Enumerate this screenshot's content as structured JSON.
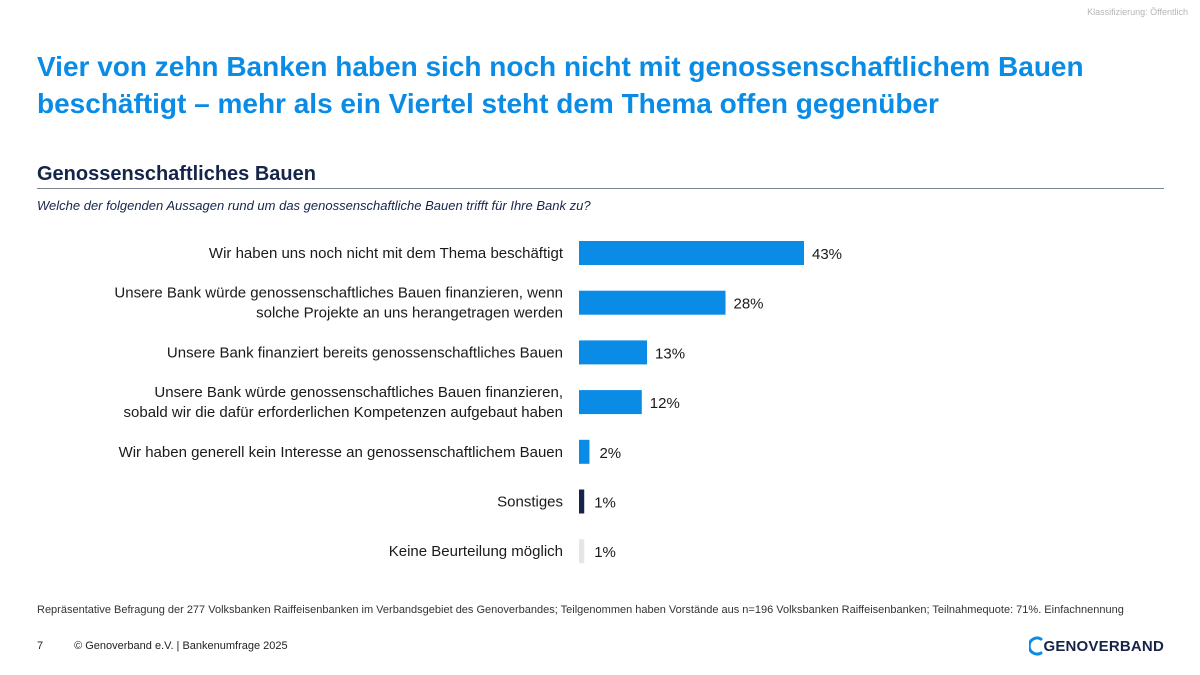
{
  "classification": "Klassifizierung: Öffentlich",
  "title": "Vier von zehn Banken haben sich noch nicht mit genossenschaftlichem Bauen beschäftigt – mehr als ein Viertel steht dem Thema offen gegenüber",
  "section_title": "Genossenschaftliches Bauen",
  "question": "Welche der folgenden Aussagen rund um das genossenschaftliche Bauen trifft für Ihre Bank zu?",
  "chart_data": {
    "type": "bar",
    "orientation": "horizontal",
    "categories": [
      [
        "Wir haben uns noch nicht mit dem Thema beschäftigt"
      ],
      [
        "Unsere Bank würde genossenschaftliches Bauen finanzieren, wenn",
        "solche Projekte an uns herangetragen werden"
      ],
      [
        "Unsere Bank finanziert bereits genossenschaftliches Bauen"
      ],
      [
        "Unsere Bank würde genossenschaftliches Bauen finanzieren,",
        "sobald wir die dafür erforderlichen Kompetenzen aufgebaut haben"
      ],
      [
        "Wir haben generell kein Interesse an genossenschaftlichem Bauen"
      ],
      [
        "Sonstiges"
      ],
      [
        "Keine Beurteilung möglich"
      ]
    ],
    "values": [
      43,
      28,
      13,
      12,
      2,
      1,
      1
    ],
    "value_labels": [
      "43%",
      "28%",
      "13%",
      "12%",
      "2%",
      "1%",
      "1%"
    ],
    "colors": [
      "#0a8ce6",
      "#0a8ce6",
      "#0a8ce6",
      "#0a8ce6",
      "#0a8ce6",
      "#15254a",
      "#e6e6e6"
    ],
    "unit": "%",
    "xlim": [
      0,
      43
    ]
  },
  "footnote": "Repräsentative Befragung der 277 Volksbanken Raiffeisenbanken im Verbandsgebiet des Genoverbandes; Teilgenommen haben Vorstände aus n=196 Volksbanken Raiffeisenbanken; Teilnahmequote: 71%. Einfachnennung",
  "footer": {
    "page_number": "7",
    "copyright": "© Genoverband e.V. | Bankenumfrage 2025"
  },
  "logo": {
    "text": "GENOVERBAND",
    "icon": "genoverband-logo-icon"
  }
}
